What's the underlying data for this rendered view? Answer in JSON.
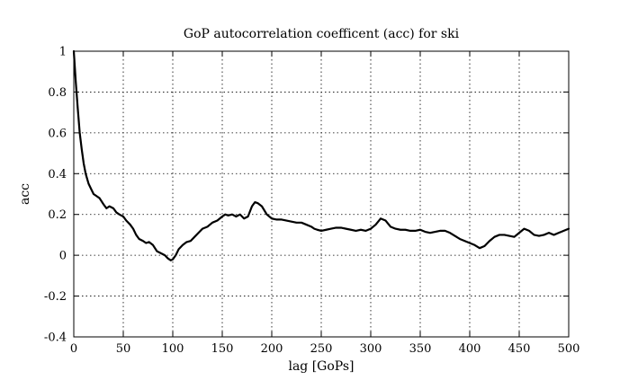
{
  "chart_data": {
    "type": "line",
    "title": "GoP autocorrelation coefficent (acc) for ski",
    "xlabel": "lag [GoPs]",
    "ylabel": "acc",
    "xlim": [
      0,
      500
    ],
    "ylim": [
      -0.4,
      1
    ],
    "xticks": [
      0,
      50,
      100,
      150,
      200,
      250,
      300,
      350,
      400,
      450,
      500
    ],
    "xtick_labels": [
      "0",
      "50",
      "100",
      "150",
      "200",
      "250",
      "300",
      "350",
      "400",
      "450",
      "500"
    ],
    "yticks": [
      -0.4,
      -0.2,
      0,
      0.2,
      0.4,
      0.6,
      0.8,
      1
    ],
    "ytick_labels": [
      "-0.4",
      "-0.2",
      "0",
      "0.2",
      "0.4",
      "0.6",
      "0.8",
      "1"
    ],
    "grid": true,
    "series": [
      {
        "x": [
          0,
          2,
          4,
          6,
          8,
          10,
          12,
          15,
          18,
          20,
          23,
          26,
          30,
          33,
          36,
          40,
          43,
          46,
          50,
          53,
          57,
          60,
          63,
          66,
          70,
          73,
          76,
          80,
          84,
          88,
          92,
          95,
          98,
          100,
          103,
          106,
          110,
          114,
          118,
          122,
          126,
          130,
          135,
          140,
          145,
          150,
          153,
          156,
          160,
          164,
          168,
          172,
          176,
          180,
          183,
          186,
          190,
          195,
          200,
          205,
          210,
          215,
          220,
          225,
          230,
          235,
          240,
          243,
          246,
          250,
          255,
          260,
          265,
          270,
          275,
          280,
          285,
          290,
          295,
          300,
          305,
          310,
          315,
          320,
          325,
          330,
          335,
          340,
          345,
          350,
          355,
          360,
          365,
          370,
          375,
          380,
          385,
          390,
          395,
          400,
          405,
          410,
          415,
          420,
          425,
          430,
          435,
          440,
          445,
          450,
          455,
          460,
          465,
          470,
          475,
          480,
          485,
          490,
          495,
          500
        ],
        "y": [
          1.0,
          0.85,
          0.72,
          0.6,
          0.52,
          0.45,
          0.4,
          0.35,
          0.32,
          0.3,
          0.29,
          0.28,
          0.25,
          0.23,
          0.24,
          0.23,
          0.21,
          0.2,
          0.19,
          0.17,
          0.15,
          0.13,
          0.1,
          0.08,
          0.07,
          0.06,
          0.065,
          0.05,
          0.02,
          0.01,
          0.0,
          -0.015,
          -0.025,
          -0.02,
          0.0,
          0.03,
          0.05,
          0.065,
          0.07,
          0.09,
          0.11,
          0.13,
          0.14,
          0.16,
          0.17,
          0.19,
          0.2,
          0.195,
          0.2,
          0.19,
          0.2,
          0.18,
          0.19,
          0.24,
          0.26,
          0.255,
          0.24,
          0.2,
          0.18,
          0.175,
          0.175,
          0.17,
          0.165,
          0.16,
          0.16,
          0.15,
          0.14,
          0.13,
          0.125,
          0.12,
          0.125,
          0.13,
          0.135,
          0.135,
          0.13,
          0.125,
          0.12,
          0.125,
          0.12,
          0.13,
          0.15,
          0.18,
          0.17,
          0.14,
          0.13,
          0.125,
          0.125,
          0.12,
          0.12,
          0.125,
          0.115,
          0.11,
          0.115,
          0.12,
          0.12,
          0.11,
          0.095,
          0.08,
          0.07,
          0.06,
          0.05,
          0.035,
          0.045,
          0.07,
          0.09,
          0.1,
          0.1,
          0.095,
          0.09,
          0.11,
          0.13,
          0.12,
          0.1,
          0.095,
          0.1,
          0.11,
          0.1,
          0.11,
          0.12,
          0.13
        ]
      }
    ]
  }
}
